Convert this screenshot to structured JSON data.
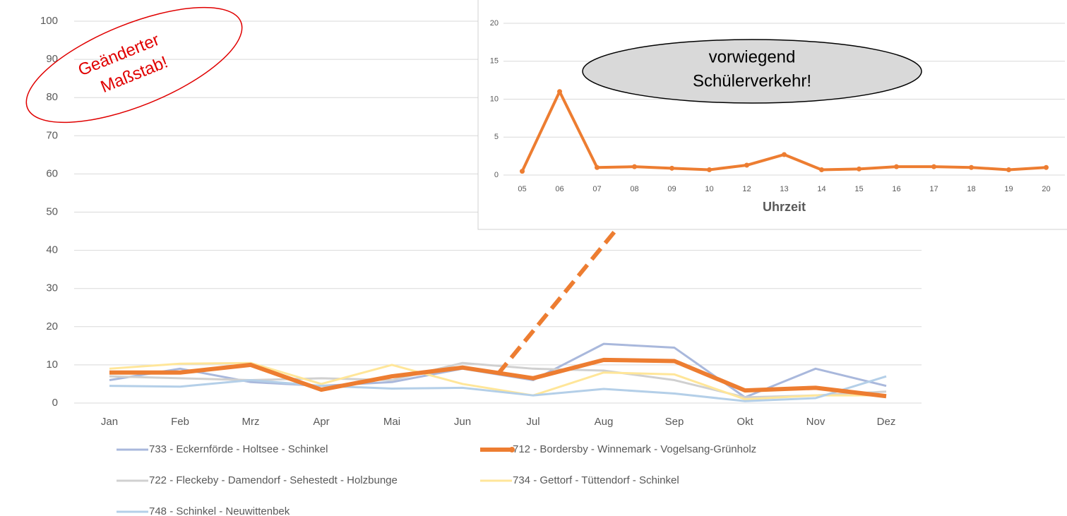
{
  "chart_data": [
    {
      "type": "line",
      "categories": [
        "Jan",
        "Feb",
        "Mrz",
        "Apr",
        "Mai",
        "Jun",
        "Jul",
        "Aug",
        "Sep",
        "Okt",
        "Nov",
        "Dez"
      ],
      "ylim": [
        0,
        100
      ],
      "yticks": [
        0,
        10,
        20,
        30,
        40,
        50,
        60,
        70,
        80,
        90,
        100
      ],
      "grid": true,
      "annotation": [
        "Geänderter",
        "Maßstab!"
      ],
      "series": [
        {
          "name": "733 - Eckernförde - Holtsee - Schinkel",
          "color": "#a9b8dc",
          "values": [
            6,
            9,
            5.5,
            4.5,
            5.5,
            9,
            6,
            15.5,
            14.5,
            1.5,
            9,
            4.5
          ]
        },
        {
          "name": "712 - Bordersby - Winnemark - Vogelsang-Grünholz",
          "color": "#ed7d31",
          "markers": true,
          "values": [
            8,
            8,
            10,
            3.5,
            7,
            9.3,
            6.5,
            11.3,
            11,
            3.3,
            4,
            1.8
          ]
        },
        {
          "name": "722 - Fleckeby - Damendorf - Sehestedt - Holzbunge",
          "color": "#d0d0d0",
          "values": [
            7,
            6.5,
            6,
            6.5,
            6,
            10.5,
            9,
            8.5,
            6,
            1.5,
            2,
            3
          ]
        },
        {
          "name": "734 - Gettorf - Tüttendorf - Schinkel",
          "color": "#ffe699",
          "values": [
            9,
            10.3,
            10.5,
            5,
            10,
            5,
            2,
            8,
            7.5,
            1,
            2,
            2
          ]
        },
        {
          "name": "748 - Schinkel - Neuwittenbek",
          "color": "#b4cfe8",
          "values": [
            4.5,
            4.3,
            6,
            4.5,
            3.8,
            4,
            2,
            3.7,
            2.5,
            0.5,
            1.3,
            7
          ]
        }
      ]
    },
    {
      "type": "line",
      "categories": [
        "05",
        "06",
        "07",
        "08",
        "09",
        "10",
        "12",
        "13",
        "14",
        "15",
        "16",
        "17",
        "18",
        "19",
        "20"
      ],
      "xlabel": "Uhrzeit",
      "ylim": [
        0,
        20
      ],
      "yticks": [
        0,
        5,
        10,
        15,
        20
      ],
      "grid": true,
      "annotation": [
        "vorwiegend",
        "Schülerverkehr!"
      ],
      "series": [
        {
          "color": "#ed7d31",
          "markers": true,
          "values": [
            0.5,
            11,
            1,
            1.1,
            0.9,
            0.7,
            1.3,
            2.7,
            0.7,
            0.8,
            1.1,
            1.1,
            1.0,
            0.7,
            1.0
          ]
        }
      ]
    }
  ]
}
